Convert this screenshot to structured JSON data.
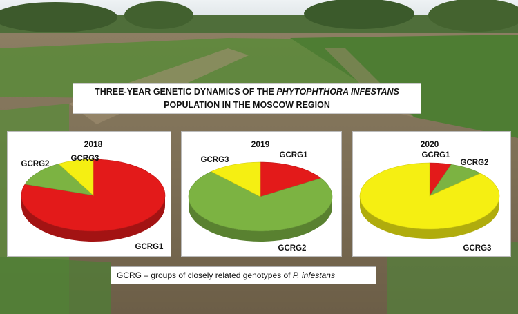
{
  "title": {
    "line1_prefix": "THREE-YEAR GENETIC DYNAMICS OF THE ",
    "line1_italic": "PHYTOPHTHORA INFESTANS",
    "line2": "POPULATION IN THE MOSCOW REGION"
  },
  "caption": {
    "prefix": "GCRG – groups of closely related genotypes of ",
    "italic": "P. infestans"
  },
  "colors": {
    "GCRG1": "#e31a1a",
    "GCRG2": "#7cb342",
    "GCRG3": "#f5ef12"
  },
  "chart_data": [
    {
      "type": "pie",
      "title": "2018",
      "categories": [
        "GCRG1",
        "GCRG2",
        "GCRG3"
      ],
      "values": [
        80,
        12,
        8
      ]
    },
    {
      "type": "pie",
      "title": "2019",
      "categories": [
        "GCRG1",
        "GCRG2",
        "GCRG3"
      ],
      "values": [
        16,
        72,
        12
      ]
    },
    {
      "type": "pie",
      "title": "2020",
      "categories": [
        "GCRG1",
        "GCRG2",
        "GCRG3"
      ],
      "values": [
        5,
        8,
        87
      ]
    }
  ]
}
